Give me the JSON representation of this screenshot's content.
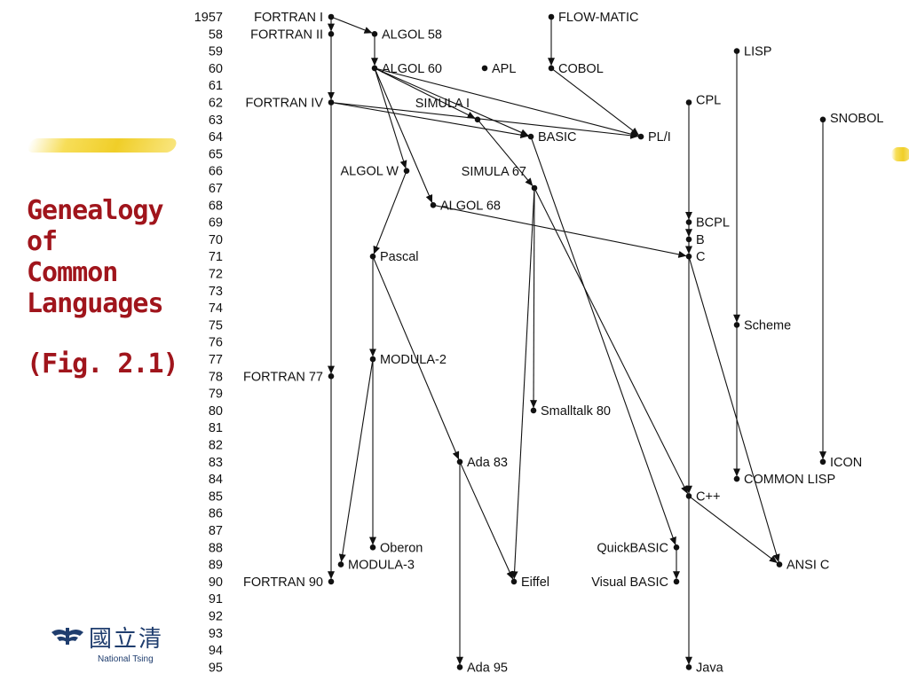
{
  "slide_title_lines": [
    "Genealogy",
    "of",
    "Common",
    "Languages"
  ],
  "figure_label": "(Fig. 2.1)",
  "logo": {
    "chinese_text": "國立清",
    "english_text": "National Tsing"
  },
  "accent_colors": {
    "title": "#a0151c",
    "highlight_brush": "#f0ce28",
    "logo": "#1f3d6e"
  },
  "years": [
    "1957",
    "58",
    "59",
    "60",
    "61",
    "62",
    "63",
    "64",
    "65",
    "66",
    "67",
    "68",
    "69",
    "70",
    "71",
    "72",
    "73",
    "74",
    "75",
    "76",
    "77",
    "78",
    "79",
    "80",
    "81",
    "82",
    "83",
    "84",
    "85",
    "86",
    "87",
    "88",
    "89",
    "90",
    "91",
    "92",
    "93",
    "94",
    "95"
  ],
  "languages": [
    {
      "id": "fortran1",
      "label": "FORTRAN I",
      "year": 1957
    },
    {
      "id": "fortran2",
      "label": "FORTRAN II",
      "year": 1958
    },
    {
      "id": "fortran4",
      "label": "FORTRAN IV",
      "year": 1962
    },
    {
      "id": "fortran77",
      "label": "FORTRAN 77",
      "year": 1978
    },
    {
      "id": "fortran90",
      "label": "FORTRAN 90",
      "year": 1990
    },
    {
      "id": "algol58",
      "label": "ALGOL 58",
      "year": 1958
    },
    {
      "id": "algol60",
      "label": "ALGOL 60",
      "year": 1960
    },
    {
      "id": "algolw",
      "label": "ALGOL W",
      "year": 1966
    },
    {
      "id": "algol68",
      "label": "ALGOL 68",
      "year": 1968
    },
    {
      "id": "simula1",
      "label": "SIMULA I",
      "year": 1963
    },
    {
      "id": "simula67",
      "label": "SIMULA 67",
      "year": 1967
    },
    {
      "id": "pascal",
      "label": "Pascal",
      "year": 1971
    },
    {
      "id": "modula2",
      "label": "MODULA-2",
      "year": 1977
    },
    {
      "id": "oberon",
      "label": "Oberon",
      "year": 1988
    },
    {
      "id": "modula3",
      "label": "MODULA-3",
      "year": 1989
    },
    {
      "id": "apl",
      "label": "APL",
      "year": 1960
    },
    {
      "id": "flowmatic",
      "label": "FLOW-MATIC",
      "year": 1957
    },
    {
      "id": "cobol",
      "label": "COBOL",
      "year": 1960
    },
    {
      "id": "pl1",
      "label": "PL/I",
      "year": 1964
    },
    {
      "id": "basic",
      "label": "BASIC",
      "year": 1964
    },
    {
      "id": "quickbasic",
      "label": "QuickBASIC",
      "year": 1988
    },
    {
      "id": "visualbasic",
      "label": "Visual BASIC",
      "year": 1990
    },
    {
      "id": "smalltalk80",
      "label": "Smalltalk 80",
      "year": 1980
    },
    {
      "id": "ada83",
      "label": "Ada 83",
      "year": 1983
    },
    {
      "id": "ada95",
      "label": "Ada 95",
      "year": 1995
    },
    {
      "id": "eiffel",
      "label": "Eiffel",
      "year": 1990
    },
    {
      "id": "cpl",
      "label": "CPL",
      "year": 1962
    },
    {
      "id": "bcpl",
      "label": "BCPL",
      "year": 1969
    },
    {
      "id": "b",
      "label": "B",
      "year": 1970
    },
    {
      "id": "c",
      "label": "C",
      "year": 1971
    },
    {
      "id": "cpp",
      "label": "C++",
      "year": 1985
    },
    {
      "id": "ansic",
      "label": "ANSI C",
      "year": 1989
    },
    {
      "id": "java",
      "label": "Java",
      "year": 1995
    },
    {
      "id": "lisp",
      "label": "LISP",
      "year": 1959
    },
    {
      "id": "scheme",
      "label": "Scheme",
      "year": 1975
    },
    {
      "id": "commonlisp",
      "label": "COMMON LISP",
      "year": 1984
    },
    {
      "id": "snobol",
      "label": "SNOBOL",
      "year": 1963
    },
    {
      "id": "icon",
      "label": "ICON",
      "year": 1983
    }
  ],
  "edges": [
    [
      "fortran1",
      "fortran2"
    ],
    [
      "fortran2",
      "fortran4"
    ],
    [
      "fortran4",
      "fortran77"
    ],
    [
      "fortran77",
      "fortran90"
    ],
    [
      "fortran1",
      "algol58"
    ],
    [
      "algol58",
      "algol60"
    ],
    [
      "algol60",
      "algolw"
    ],
    [
      "algol60",
      "algol68"
    ],
    [
      "algol60",
      "simula1"
    ],
    [
      "algol60",
      "basic"
    ],
    [
      "algol60",
      "pl1"
    ],
    [
      "fortran4",
      "pl1"
    ],
    [
      "fortran4",
      "basic"
    ],
    [
      "cobol",
      "pl1"
    ],
    [
      "flowmatic",
      "cobol"
    ],
    [
      "simula1",
      "simula67"
    ],
    [
      "algolw",
      "pascal"
    ],
    [
      "algol68",
      "c"
    ],
    [
      "pascal",
      "modula2"
    ],
    [
      "pascal",
      "ada83"
    ],
    [
      "modula2",
      "oberon"
    ],
    [
      "modula2",
      "modula3"
    ],
    [
      "ada83",
      "ada95"
    ],
    [
      "ada83",
      "eiffel"
    ],
    [
      "simula67",
      "smalltalk80"
    ],
    [
      "simula67",
      "eiffel"
    ],
    [
      "simula67",
      "cpp"
    ],
    [
      "basic",
      "quickbasic"
    ],
    [
      "quickbasic",
      "visualbasic"
    ],
    [
      "cpl",
      "bcpl"
    ],
    [
      "bcpl",
      "b"
    ],
    [
      "b",
      "c"
    ],
    [
      "c",
      "cpp"
    ],
    [
      "c",
      "ansic"
    ],
    [
      "cpp",
      "ansic"
    ],
    [
      "cpp",
      "java"
    ],
    [
      "lisp",
      "scheme"
    ],
    [
      "scheme",
      "commonlisp"
    ],
    [
      "snobol",
      "icon"
    ]
  ]
}
